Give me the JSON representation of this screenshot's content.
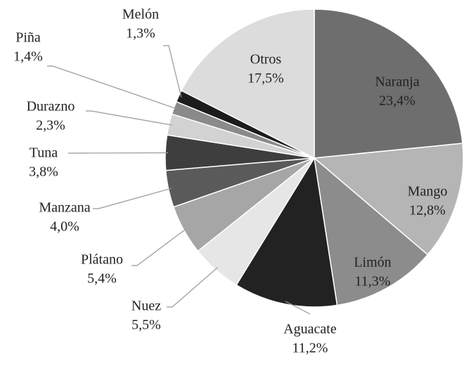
{
  "chart_data": {
    "type": "pie",
    "categories": [
      "Naranja",
      "Mango",
      "Limón",
      "Aguacate",
      "Nuez",
      "Plátano",
      "Manzana",
      "Tuna",
      "Durazno",
      "Piña",
      "Melón",
      "Otros"
    ],
    "values": [
      23.4,
      12.8,
      11.3,
      11.2,
      5.5,
      5.4,
      4.0,
      3.8,
      2.3,
      1.4,
      1.3,
      17.5
    ],
    "value_labels": [
      "23,4%",
      "12,8%",
      "11,3%",
      "11,2%",
      "5,5%",
      "5,4%",
      "4,0%",
      "3,8%",
      "2,3%",
      "1,4%",
      "1,3%",
      "17,5%"
    ],
    "colors": [
      "#6e6e6e",
      "#b5b5b5",
      "#8c8c8c",
      "#222222",
      "#e6e6e6",
      "#a6a6a6",
      "#5a5a5a",
      "#3e3e3e",
      "#d2d2d2",
      "#8a8a8a",
      "#1c1c1c",
      "#dcdcdc"
    ]
  }
}
